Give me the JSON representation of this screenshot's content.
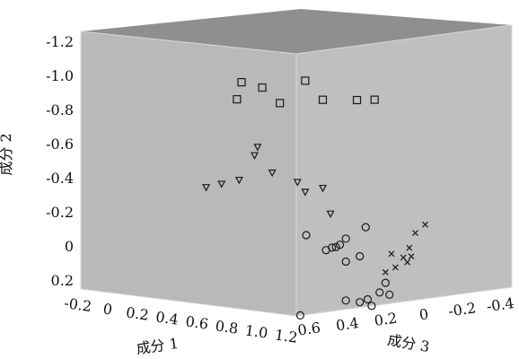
{
  "chart_data": {
    "type": "scatter",
    "projection": "3d",
    "title": "",
    "axes": {
      "x": {
        "label": "成分 1",
        "ticks": [
          "-0.2",
          "0",
          "0.2",
          "0.4",
          "0.6",
          "0.8",
          "1.0",
          "1.2"
        ],
        "range": [
          -0.2,
          1.2
        ]
      },
      "y": {
        "label": "成分 2",
        "ticks": [
          "-1.2",
          "-1.0",
          "-0.8",
          "-0.6",
          "-0.4",
          "-0.2",
          "0",
          "0.2"
        ],
        "range": [
          0.2,
          -1.2
        ],
        "reversed": true
      },
      "z": {
        "label": "成分 3",
        "ticks": [
          "0.6",
          "0.4",
          "0.2",
          "0",
          "-0.2",
          "-0.4"
        ],
        "range": [
          0.6,
          -0.4
        ],
        "reversed": true
      }
    },
    "grid": false,
    "legend": "none",
    "colors": {
      "top_face": "#8f8f8f",
      "left_face": "#b9b9b9",
      "right_face": "#bfbfbf",
      "marks": "#1a1a1a"
    },
    "series": [
      {
        "marker": "square",
        "points": [
          {
            "x": 0.75,
            "y": -0.97,
            "z": 0.55
          },
          {
            "x": 0.78,
            "y": -1.07,
            "z": 0.55
          },
          {
            "x": 0.85,
            "y": -1.04,
            "z": 0.5
          },
          {
            "x": 0.9,
            "y": -0.95,
            "z": 0.45
          },
          {
            "x": 1.0,
            "y": -1.08,
            "z": 0.4
          },
          {
            "x": 1.05,
            "y": -0.97,
            "z": 0.35
          },
          {
            "x": 0.95,
            "y": -0.92,
            "z": 0.1
          },
          {
            "x": 1.0,
            "y": -0.92,
            "z": 0.05
          }
        ]
      },
      {
        "marker": "triangle-down",
        "points": [
          {
            "x": 0.55,
            "y": -0.45,
            "z": 0.55
          },
          {
            "x": 0.65,
            "y": -0.48,
            "z": 0.55
          },
          {
            "x": 0.7,
            "y": -0.5,
            "z": 0.5
          },
          {
            "x": 0.8,
            "y": -0.65,
            "z": 0.5
          },
          {
            "x": 0.85,
            "y": -0.55,
            "z": 0.45
          },
          {
            "x": 0.95,
            "y": -0.5,
            "z": 0.4
          },
          {
            "x": 1.0,
            "y": -0.45,
            "z": 0.4
          },
          {
            "x": 1.05,
            "y": -0.47,
            "z": 0.35
          },
          {
            "x": 1.1,
            "y": -0.33,
            "z": 0.35
          },
          {
            "x": 0.82,
            "y": -0.7,
            "z": 0.5
          }
        ]
      },
      {
        "marker": "circle",
        "points": [
          {
            "x": 1.2,
            "y": -0.25,
            "z": 0.55
          },
          {
            "x": 1.2,
            "y": -0.15,
            "z": 0.45
          },
          {
            "x": 1.2,
            "y": -0.16,
            "z": 0.42
          },
          {
            "x": 1.2,
            "y": -0.16,
            "z": 0.4
          },
          {
            "x": 1.2,
            "y": -0.17,
            "z": 0.38
          },
          {
            "x": 1.2,
            "y": -0.2,
            "z": 0.35
          },
          {
            "x": 1.2,
            "y": -0.07,
            "z": 0.35
          },
          {
            "x": 1.2,
            "y": -0.09,
            "z": 0.28
          },
          {
            "x": 1.2,
            "y": -0.25,
            "z": 0.25
          },
          {
            "x": 1.2,
            "y": 0.15,
            "z": 0.35
          },
          {
            "x": 1.2,
            "y": 0.17,
            "z": 0.28
          },
          {
            "x": 1.2,
            "y": 0.16,
            "z": 0.24
          },
          {
            "x": 1.2,
            "y": 0.13,
            "z": 0.18
          },
          {
            "x": 1.2,
            "y": 0.08,
            "z": 0.15
          },
          {
            "x": 1.2,
            "y": 0.15,
            "z": 0.13
          },
          {
            "x": 1.2,
            "y": 0.2,
            "z": 0.58
          },
          {
            "x": 1.2,
            "y": 0.2,
            "z": 0.22
          }
        ]
      },
      {
        "marker": "cross",
        "points": [
          {
            "x": 1.2,
            "y": -0.18,
            "z": 0.0
          },
          {
            "x": 1.2,
            "y": -0.1,
            "z": 0.03
          },
          {
            "x": 1.2,
            "y": -0.05,
            "z": 0.06
          },
          {
            "x": 1.2,
            "y": 0.0,
            "z": 0.1
          },
          {
            "x": 1.2,
            "y": 0.02,
            "z": 0.15
          },
          {
            "x": 1.2,
            "y": -0.08,
            "z": 0.12
          },
          {
            "x": 1.2,
            "y": -0.22,
            "z": -0.05
          },
          {
            "x": 1.2,
            "y": -0.05,
            "z": 0.02
          },
          {
            "x": 1.2,
            "y": -0.02,
            "z": 0.04
          }
        ]
      }
    ]
  }
}
